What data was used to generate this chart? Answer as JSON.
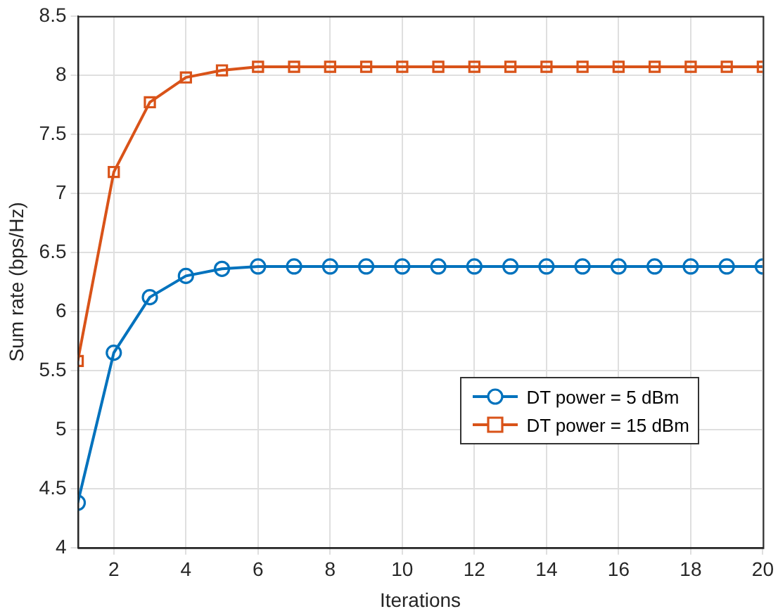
{
  "chart_data": {
    "type": "line",
    "xlabel": "Iterations",
    "ylabel": "Sum rate (bps/Hz)",
    "x": [
      1,
      2,
      3,
      4,
      5,
      6,
      7,
      8,
      9,
      10,
      11,
      12,
      13,
      14,
      15,
      16,
      17,
      18,
      19,
      20
    ],
    "series": [
      {
        "name": "DT power = 5 dBm",
        "color": "#0072bd",
        "marker": "circle",
        "values": [
          4.38,
          5.65,
          6.12,
          6.3,
          6.36,
          6.38,
          6.38,
          6.38,
          6.38,
          6.38,
          6.38,
          6.38,
          6.38,
          6.38,
          6.38,
          6.38,
          6.38,
          6.38,
          6.38,
          6.38
        ]
      },
      {
        "name": "DT power = 15 dBm",
        "color": "#d95319",
        "marker": "square",
        "values": [
          5.58,
          7.18,
          7.77,
          7.98,
          8.04,
          8.07,
          8.07,
          8.07,
          8.07,
          8.07,
          8.07,
          8.07,
          8.07,
          8.07,
          8.07,
          8.07,
          8.07,
          8.07,
          8.07,
          8.07
        ]
      }
    ],
    "xlim": [
      1,
      20
    ],
    "xticks": [
      2,
      4,
      6,
      8,
      10,
      12,
      14,
      16,
      18,
      20
    ],
    "ylim": [
      4,
      8.5
    ],
    "yticks": [
      4,
      4.5,
      5,
      5.5,
      6,
      6.5,
      7,
      7.5,
      8,
      8.5
    ],
    "grid": true,
    "legend": "right",
    "line_style": "solid"
  }
}
